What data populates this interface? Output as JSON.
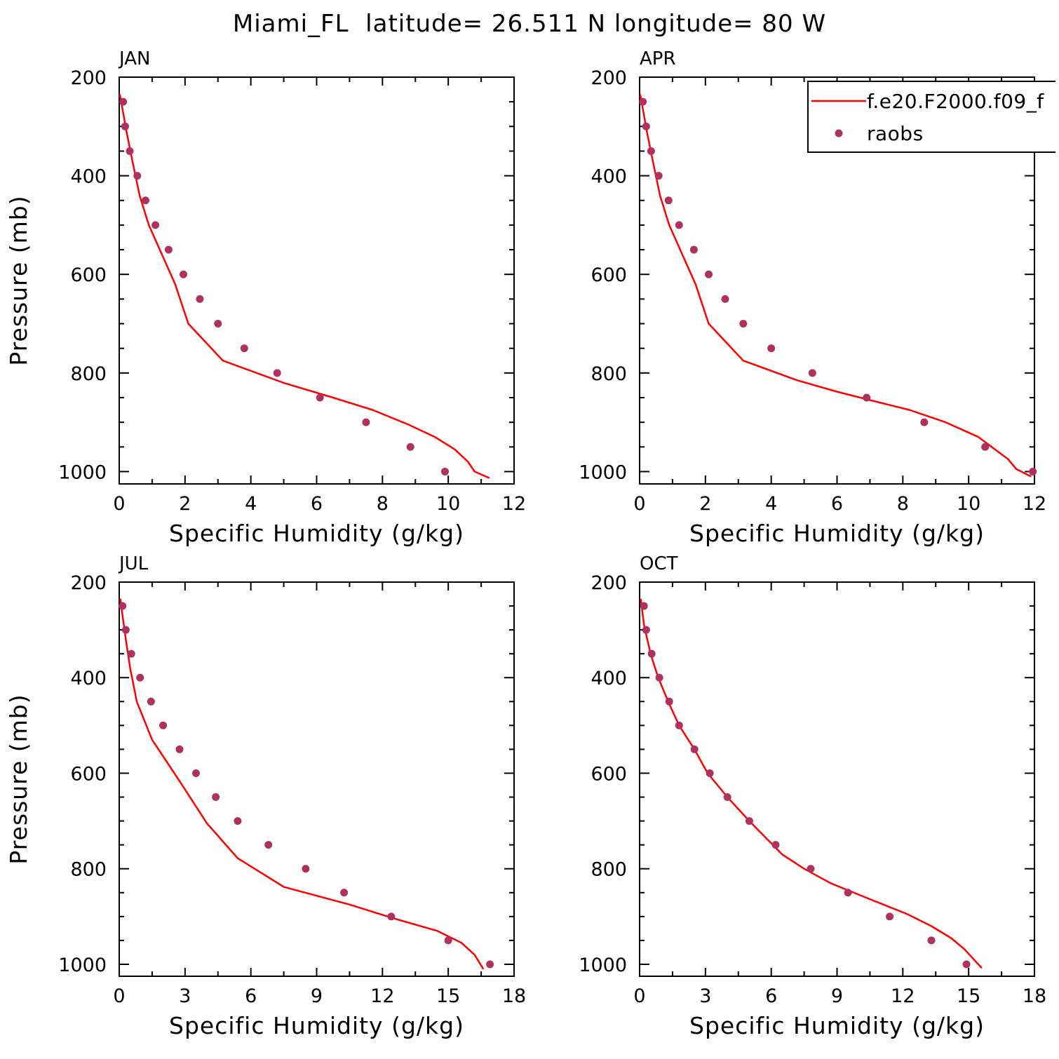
{
  "figure_title": "Miami_FL  latitude= 26.511 N longitude= 80 W",
  "chart_data": [
    {
      "type": "line",
      "title": "JAN",
      "xlabel": "Specific Humidity (g/kg)",
      "ylabel": "Pressure (mb)",
      "xlim": [
        0,
        12
      ],
      "ylim": [
        200,
        1025
      ],
      "y_inverted": true,
      "xticks": [
        0,
        2,
        4,
        6,
        8,
        10,
        12
      ],
      "yticks": [
        200,
        400,
        600,
        800,
        1000
      ],
      "series": [
        {
          "name": "f.e20.F2000.f09_f",
          "kind": "line",
          "color": "#ff0000",
          "x": [
            0.02,
            0.1,
            0.22,
            0.4,
            0.62,
            0.9,
            1.3,
            1.7,
            2.1,
            3.15,
            5.0,
            6.5,
            7.7,
            8.8,
            9.6,
            10.2,
            10.6,
            10.8,
            11.25
          ],
          "y": [
            235,
            265,
            310,
            370,
            440,
            500,
            560,
            620,
            700,
            775,
            820,
            850,
            875,
            905,
            930,
            955,
            980,
            1000,
            1013
          ]
        },
        {
          "name": "raobs",
          "kind": "scatter",
          "color": "#b03060",
          "x": [
            0.12,
            0.18,
            0.32,
            0.55,
            0.8,
            1.1,
            1.5,
            1.95,
            2.45,
            3.0,
            3.8,
            4.8,
            6.1,
            7.5,
            8.85,
            9.9
          ],
          "y": [
            250,
            300,
            350,
            400,
            450,
            500,
            550,
            600,
            650,
            700,
            750,
            800,
            850,
            900,
            950,
            1000
          ]
        }
      ]
    },
    {
      "type": "line",
      "title": "APR",
      "xlabel": "Specific Humidity (g/kg)",
      "ylabel": "",
      "xlim": [
        0,
        12
      ],
      "ylim": [
        200,
        1025
      ],
      "y_inverted": true,
      "xticks": [
        0,
        2,
        4,
        6,
        8,
        10,
        12
      ],
      "yticks": [
        200,
        400,
        600,
        800,
        1000
      ],
      "legend": {
        "position": "top-right",
        "entries": [
          "f.e20.F2000.f09_f",
          "raobs"
        ]
      },
      "series": [
        {
          "name": "f.e20.F2000.f09_f",
          "kind": "line",
          "color": "#ff0000",
          "x": [
            0.02,
            0.1,
            0.22,
            0.4,
            0.62,
            0.9,
            1.3,
            1.7,
            2.1,
            3.15,
            4.8,
            6.0,
            7.0,
            8.2,
            9.3,
            10.3,
            10.8,
            11.2,
            11.45,
            11.9
          ],
          "y": [
            235,
            265,
            310,
            370,
            440,
            500,
            560,
            620,
            700,
            775,
            815,
            838,
            855,
            875,
            900,
            930,
            955,
            975,
            995,
            1010
          ]
        },
        {
          "name": "raobs",
          "kind": "scatter",
          "color": "#b03060",
          "x": [
            0.1,
            0.2,
            0.35,
            0.58,
            0.88,
            1.2,
            1.65,
            2.1,
            2.6,
            3.15,
            4.0,
            5.25,
            6.9,
            8.65,
            10.5,
            11.95
          ],
          "y": [
            250,
            300,
            350,
            400,
            450,
            500,
            550,
            600,
            650,
            700,
            750,
            800,
            850,
            900,
            950,
            1000
          ]
        }
      ]
    },
    {
      "type": "line",
      "title": "JUL",
      "xlabel": "Specific Humidity (g/kg)",
      "ylabel": "Pressure (mb)",
      "xlim": [
        0,
        18
      ],
      "ylim": [
        200,
        1025
      ],
      "y_inverted": true,
      "xticks": [
        0,
        3,
        6,
        9,
        12,
        15,
        18
      ],
      "yticks": [
        200,
        400,
        600,
        800,
        1000
      ],
      "series": [
        {
          "name": "f.e20.F2000.f09_f",
          "kind": "line",
          "color": "#ff0000",
          "x": [
            0.05,
            0.15,
            0.3,
            0.5,
            0.8,
            1.5,
            2.8,
            4.0,
            5.4,
            7.5,
            10.5,
            12.6,
            14.5,
            15.6,
            16.2,
            16.6
          ],
          "y": [
            235,
            270,
            320,
            380,
            450,
            530,
            620,
            705,
            778,
            838,
            875,
            905,
            930,
            955,
            980,
            1010
          ]
        },
        {
          "name": "raobs",
          "kind": "scatter",
          "color": "#b03060",
          "x": [
            0.15,
            0.3,
            0.55,
            0.95,
            1.45,
            2.0,
            2.75,
            3.5,
            4.4,
            5.4,
            6.8,
            8.5,
            10.25,
            12.4,
            15.0,
            16.9
          ],
          "y": [
            250,
            300,
            350,
            400,
            450,
            500,
            550,
            600,
            650,
            700,
            750,
            800,
            850,
            900,
            950,
            1000
          ]
        }
      ]
    },
    {
      "type": "line",
      "title": "OCT",
      "xlabel": "Specific Humidity (g/kg)",
      "ylabel": "",
      "xlim": [
        0,
        18
      ],
      "ylim": [
        200,
        1025
      ],
      "y_inverted": true,
      "xticks": [
        0,
        3,
        6,
        9,
        12,
        15,
        18
      ],
      "yticks": [
        200,
        400,
        600,
        800,
        1000
      ],
      "series": [
        {
          "name": "f.e20.F2000.f09_f",
          "kind": "line",
          "color": "#ff0000",
          "x": [
            0.05,
            0.2,
            0.5,
            0.85,
            1.3,
            1.8,
            2.5,
            3.1,
            4.0,
            5.0,
            6.5,
            7.5,
            8.7,
            10.3,
            12.2,
            13.3,
            14.2,
            14.8,
            15.2,
            15.6
          ],
          "y": [
            235,
            290,
            350,
            400,
            450,
            500,
            550,
            600,
            650,
            700,
            770,
            800,
            830,
            860,
            895,
            920,
            945,
            968,
            988,
            1008
          ]
        },
        {
          "name": "raobs",
          "kind": "scatter",
          "color": "#b03060",
          "x": [
            0.2,
            0.3,
            0.55,
            0.9,
            1.35,
            1.8,
            2.5,
            3.2,
            4.0,
            5.0,
            6.2,
            7.8,
            9.5,
            11.4,
            13.3,
            14.9
          ],
          "y": [
            250,
            300,
            350,
            400,
            450,
            500,
            550,
            600,
            650,
            700,
            750,
            800,
            850,
            900,
            950,
            1000
          ]
        }
      ]
    }
  ]
}
